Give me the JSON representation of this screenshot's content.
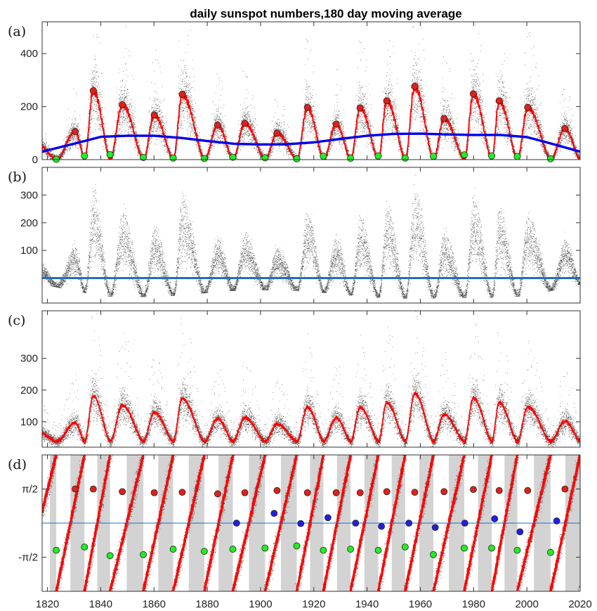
{
  "chart_data": {
    "title": "daily sunspot numbers,180 day moving average",
    "type": "scatter",
    "x_range": [
      1818,
      2020
    ],
    "x_ticks": [
      1820,
      1840,
      1860,
      1880,
      1900,
      1920,
      1940,
      1960,
      1980,
      2000,
      2020
    ],
    "cycle_minima_years": [
      1823.3,
      1833.9,
      1843.5,
      1856.0,
      1867.2,
      1878.9,
      1889.6,
      1901.7,
      1913.6,
      1923.6,
      1933.8,
      1944.2,
      1954.3,
      1964.9,
      1976.5,
      1986.8,
      1996.4,
      2008.9,
      2020.0
    ],
    "cycle_maxima_years": [
      1830.4,
      1837.2,
      1848.1,
      1860.1,
      1870.6,
      1883.9,
      1894.1,
      1906.2,
      1917.6,
      1928.4,
      1937.4,
      1947.4,
      1957.9,
      1968.9,
      1979.9,
      1989.6,
      2000.3,
      2014.3
    ],
    "panels": [
      {
        "label": "(a)",
        "y_range": [
          0,
          520
        ],
        "y_ticks": [
          0,
          200,
          400
        ],
        "y_tick_labels": [
          "0",
          "200",
          "400"
        ],
        "maxima": [
          {
            "x": 1830.4,
            "y": 106
          },
          {
            "x": 1837.2,
            "y": 260
          },
          {
            "x": 1848.1,
            "y": 207
          },
          {
            "x": 1860.1,
            "y": 168
          },
          {
            "x": 1870.6,
            "y": 246
          },
          {
            "x": 1883.9,
            "y": 130
          },
          {
            "x": 1894.1,
            "y": 137
          },
          {
            "x": 1906.2,
            "y": 100
          },
          {
            "x": 1917.6,
            "y": 197
          },
          {
            "x": 1928.4,
            "y": 134
          },
          {
            "x": 1937.4,
            "y": 195
          },
          {
            "x": 1947.4,
            "y": 222
          },
          {
            "x": 1957.9,
            "y": 276
          },
          {
            "x": 1968.9,
            "y": 155
          },
          {
            "x": 1979.9,
            "y": 248
          },
          {
            "x": 1989.6,
            "y": 222
          },
          {
            "x": 2000.3,
            "y": 197
          },
          {
            "x": 2014.3,
            "y": 117
          }
        ],
        "minima": [
          {
            "x": 1823.3,
            "y": 1
          },
          {
            "x": 1833.9,
            "y": 14
          },
          {
            "x": 1843.5,
            "y": 19
          },
          {
            "x": 1856.0,
            "y": 8
          },
          {
            "x": 1867.2,
            "y": 6
          },
          {
            "x": 1878.9,
            "y": 4
          },
          {
            "x": 1889.6,
            "y": 9
          },
          {
            "x": 1901.7,
            "y": 7
          },
          {
            "x": 1913.6,
            "y": 3
          },
          {
            "x": 1923.6,
            "y": 13
          },
          {
            "x": 1933.8,
            "y": 5
          },
          {
            "x": 1944.2,
            "y": 14
          },
          {
            "x": 1954.3,
            "y": 6
          },
          {
            "x": 1964.9,
            "y": 13
          },
          {
            "x": 1976.5,
            "y": 18
          },
          {
            "x": 1986.8,
            "y": 14
          },
          {
            "x": 1996.4,
            "y": 12
          },
          {
            "x": 2008.9,
            "y": 3
          }
        ],
        "trend": [
          {
            "x": 1818,
            "y": 30
          },
          {
            "x": 1830,
            "y": 60
          },
          {
            "x": 1840,
            "y": 86
          },
          {
            "x": 1850,
            "y": 90
          },
          {
            "x": 1860,
            "y": 90
          },
          {
            "x": 1870,
            "y": 82
          },
          {
            "x": 1880,
            "y": 70
          },
          {
            "x": 1890,
            "y": 60
          },
          {
            "x": 1900,
            "y": 57
          },
          {
            "x": 1910,
            "y": 58
          },
          {
            "x": 1920,
            "y": 65
          },
          {
            "x": 1930,
            "y": 78
          },
          {
            "x": 1940,
            "y": 90
          },
          {
            "x": 1950,
            "y": 97
          },
          {
            "x": 1960,
            "y": 98
          },
          {
            "x": 1970,
            "y": 95
          },
          {
            "x": 1980,
            "y": 93
          },
          {
            "x": 1990,
            "y": 93
          },
          {
            "x": 2000,
            "y": 85
          },
          {
            "x": 2010,
            "y": 58
          },
          {
            "x": 2020,
            "y": 30
          }
        ],
        "series_colors": {
          "daily": "#000000",
          "moving_average": "#ff0000",
          "trend": "#0000ee",
          "maxima": "#e0201b",
          "minima": "#22ee22"
        }
      },
      {
        "label": "(b)",
        "y_range": [
          -90,
          400
        ],
        "y_ticks": [
          100,
          200,
          300
        ],
        "y_tick_labels": [
          "100",
          "200",
          "300"
        ],
        "zero_line": 0,
        "series_colors": {
          "daily": "#000000",
          "zero_line": "#1f6fbf"
        }
      },
      {
        "label": "(c)",
        "y_range": [
          20,
          450
        ],
        "y_ticks": [
          100,
          200,
          300
        ],
        "y_tick_labels": [
          "100",
          "200",
          "300"
        ],
        "series_colors": {
          "daily": "#000000",
          "moving_average": "#ff0000"
        }
      },
      {
        "label": "(d)",
        "y_range": [
          -3.14159,
          3.14159
        ],
        "y_ticks": [
          -1.5708,
          1.5708
        ],
        "y_tick_labels": [
          "-π/2",
          "π/2"
        ],
        "zero_line": 0,
        "phase_maxima": [
          {
            "x": 1830.4,
            "y": 1.57
          },
          {
            "x": 1837.2,
            "y": 1.57
          },
          {
            "x": 1848.1,
            "y": 1.45
          },
          {
            "x": 1860.1,
            "y": 1.4
          },
          {
            "x": 1870.6,
            "y": 1.42
          },
          {
            "x": 1883.9,
            "y": 1.35
          },
          {
            "x": 1894.1,
            "y": 1.4
          },
          {
            "x": 1906.2,
            "y": 1.5
          },
          {
            "x": 1917.6,
            "y": 1.4
          },
          {
            "x": 1928.4,
            "y": 1.4
          },
          {
            "x": 1937.4,
            "y": 1.4
          },
          {
            "x": 1947.4,
            "y": 1.45
          },
          {
            "x": 1957.9,
            "y": 1.42
          },
          {
            "x": 1968.9,
            "y": 1.45
          },
          {
            "x": 1979.9,
            "y": 1.55
          },
          {
            "x": 1989.6,
            "y": 1.5
          },
          {
            "x": 2000.3,
            "y": 1.5
          },
          {
            "x": 2014.3,
            "y": 1.57
          }
        ],
        "phase_zero_crossings": [
          {
            "x": 1891.0,
            "y": 0.0
          },
          {
            "x": 1905.1,
            "y": 0.45
          },
          {
            "x": 1915.1,
            "y": -0.02
          },
          {
            "x": 1925.3,
            "y": 0.25
          },
          {
            "x": 1935.7,
            "y": 0.0
          },
          {
            "x": 1945.4,
            "y": -0.15
          },
          {
            "x": 1955.7,
            "y": 0.0
          },
          {
            "x": 1965.6,
            "y": -0.2
          },
          {
            "x": 1976.7,
            "y": 0.0
          },
          {
            "x": 1987.9,
            "y": 0.2
          },
          {
            "x": 1997.4,
            "y": -0.4
          },
          {
            "x": 2011.2,
            "y": 0.1
          }
        ],
        "phase_minima": [
          {
            "x": 1823.3,
            "y": -1.25
          },
          {
            "x": 1833.9,
            "y": -1.1
          },
          {
            "x": 1843.5,
            "y": -1.5
          },
          {
            "x": 1856.0,
            "y": -1.45
          },
          {
            "x": 1867.2,
            "y": -1.2
          },
          {
            "x": 1878.9,
            "y": -1.3
          },
          {
            "x": 1889.6,
            "y": -1.2
          },
          {
            "x": 1901.7,
            "y": -1.15
          },
          {
            "x": 1913.6,
            "y": -1.05
          },
          {
            "x": 1923.6,
            "y": -1.25
          },
          {
            "x": 1933.8,
            "y": -1.2
          },
          {
            "x": 1944.2,
            "y": -1.25
          },
          {
            "x": 1954.3,
            "y": -1.1
          },
          {
            "x": 1964.9,
            "y": -1.45
          },
          {
            "x": 1976.5,
            "y": -1.15
          },
          {
            "x": 1986.8,
            "y": -1.15
          },
          {
            "x": 1996.4,
            "y": -1.25
          },
          {
            "x": 2008.9,
            "y": -1.35
          }
        ],
        "series_colors": {
          "daily": "#000000",
          "phase": "#ff0000",
          "shade": "#d3d3d3",
          "maxima": "#e0201b",
          "zero": "#2020dd",
          "minima": "#22ee22",
          "zero_line": "#1f6fbf"
        }
      }
    ]
  }
}
